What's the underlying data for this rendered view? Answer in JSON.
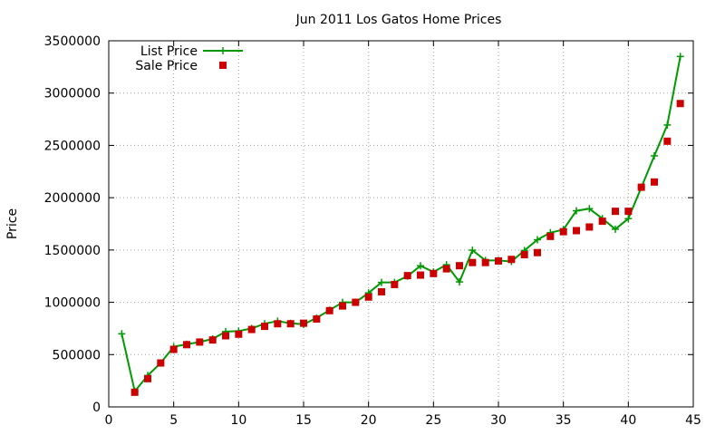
{
  "chart_data": {
    "type": "line",
    "title": "Jun 2011 Los Gatos Home Prices",
    "xlabel": "",
    "ylabel": "Price",
    "xlim": [
      0,
      45
    ],
    "ylim": [
      0,
      3500000
    ],
    "x_ticks": [
      "0",
      "5",
      "10",
      "15",
      "20",
      "25",
      "30",
      "35",
      "40",
      "45"
    ],
    "y_ticks": [
      "0",
      "500000",
      "1000000",
      "1500000",
      "2000000",
      "2500000",
      "3000000",
      "3500000"
    ],
    "grid": true,
    "legend_position": "top-left",
    "series": [
      {
        "name": "List Price",
        "style": "line with + markers",
        "color": "#009900",
        "x": [
          1,
          2,
          3,
          4,
          5,
          6,
          7,
          8,
          9,
          10,
          11,
          12,
          13,
          14,
          15,
          16,
          17,
          18,
          19,
          20,
          21,
          22,
          23,
          24,
          25,
          26,
          27,
          28,
          29,
          30,
          31,
          32,
          33,
          34,
          35,
          36,
          37,
          38,
          39,
          40,
          41,
          42,
          43,
          44
        ],
        "y": [
          699000,
          150000,
          300000,
          420000,
          575000,
          599000,
          620000,
          650000,
          720000,
          725000,
          750000,
          795000,
          820000,
          799000,
          790000,
          850000,
          925000,
          999000,
          1000000,
          1090000,
          1190000,
          1190000,
          1250000,
          1349000,
          1290000,
          1359000,
          1195000,
          1498000,
          1400000,
          1400000,
          1390000,
          1495000,
          1598000,
          1665000,
          1695000,
          1875000,
          1895000,
          1800000,
          1699000,
          1800000,
          2099000,
          2400000,
          2695000,
          3350000
        ]
      },
      {
        "name": "Sale Price",
        "style": "square markers",
        "color": "#cc0000",
        "x": [
          2,
          3,
          4,
          5,
          6,
          7,
          8,
          9,
          10,
          11,
          12,
          13,
          14,
          15,
          16,
          17,
          18,
          19,
          20,
          21,
          22,
          23,
          24,
          25,
          26,
          27,
          28,
          29,
          30,
          31,
          32,
          33,
          34,
          35,
          36,
          37,
          38,
          39,
          40,
          41,
          42,
          43,
          44
        ],
        "y": [
          140000,
          270000,
          420000,
          550000,
          595000,
          620000,
          640000,
          680000,
          695000,
          740000,
          770000,
          795000,
          795000,
          800000,
          840000,
          920000,
          965000,
          1000000,
          1050000,
          1100000,
          1170000,
          1255000,
          1260000,
          1275000,
          1320000,
          1350000,
          1380000,
          1380000,
          1395000,
          1410000,
          1455000,
          1475000,
          1630000,
          1675000,
          1685000,
          1720000,
          1775000,
          1870000,
          1870000,
          2100000,
          2150000,
          2540000,
          2900000
        ]
      }
    ]
  }
}
